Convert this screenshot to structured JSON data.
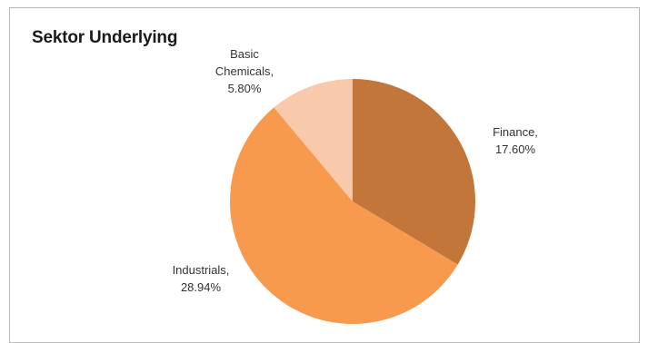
{
  "chart_data": {
    "type": "pie",
    "title": "Sektor Underlying",
    "slices": [
      {
        "label_lines": [
          "Finance,",
          "17.60%"
        ],
        "name": "Finance",
        "value": 17.6,
        "color": "#c3763a"
      },
      {
        "label_lines": [
          "Industrials,",
          "28.94%"
        ],
        "name": "Industrials",
        "value": 28.94,
        "color": "#f79a4d"
      },
      {
        "label_lines": [
          "Basic",
          "Chemicals,",
          "5.80%"
        ],
        "name": "Basic Chemicals",
        "value": 5.8,
        "color": "#f8c9ab"
      }
    ],
    "legend": "none"
  }
}
